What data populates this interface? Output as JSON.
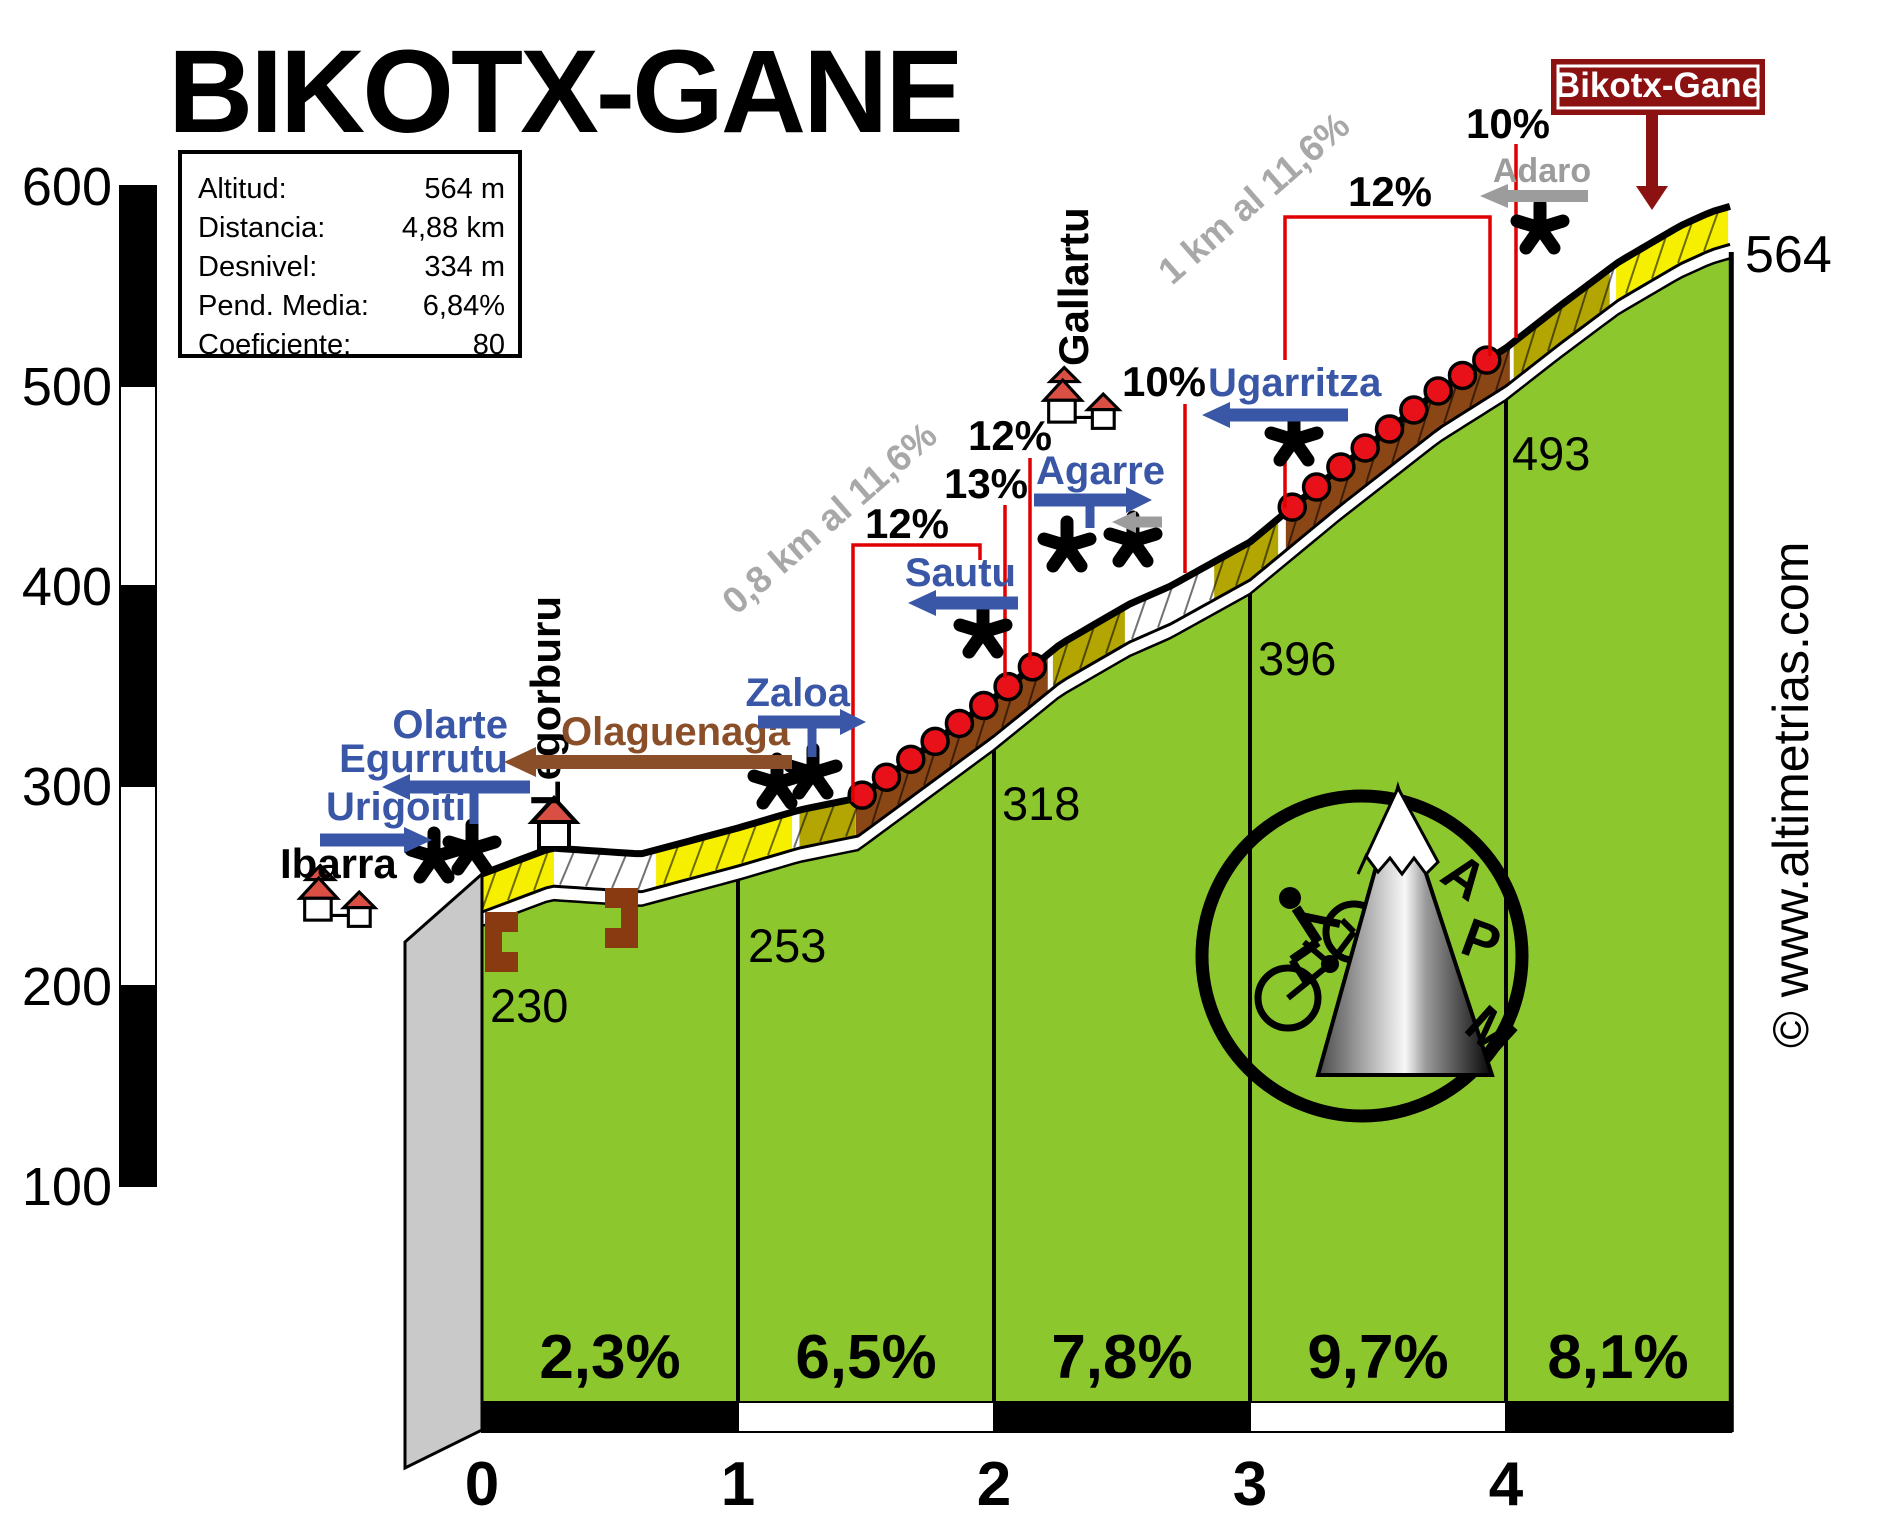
{
  "title": "BIKOTX-GANE",
  "watermark": "© www.altimetrias.com",
  "info_box": {
    "rows": [
      {
        "label": "Altitud:",
        "value": "564 m"
      },
      {
        "label": "Distancia:",
        "value": "4,88 km"
      },
      {
        "label": "Desnivel:",
        "value": "334 m"
      },
      {
        "label": "Pend. Media:",
        "value": "6,84%"
      },
      {
        "label": "Coeficiente:",
        "value": "80"
      }
    ]
  },
  "yaxis": {
    "ticks": [
      "600",
      "500",
      "400",
      "300",
      "200",
      "100"
    ]
  },
  "xaxis": {
    "ticks": [
      "0",
      "1",
      "2",
      "3",
      "4"
    ]
  },
  "km_gradient_labels": [
    "2,3%",
    "6,5%",
    "7,8%",
    "9,7%",
    "8,1%"
  ],
  "km_altitude_labels": [
    "230",
    "253",
    "318",
    "396",
    "493"
  ],
  "summit_altitude": "564",
  "summit_label": "Bikotx-Gane",
  "annotations": {
    "ibarra": "Ibarra",
    "urigoiti": "Urigoiti",
    "olarte": "Olarte",
    "egurrutu": "Egurrutu",
    "legorburu": "Legorburu",
    "olaguenaga": "Olaguenaga",
    "zaloa": "Zaloa",
    "sautu": "Sautu",
    "agarre": "Agarre",
    "gallartu": "Gallartu",
    "ugarritza": "Ugarritza",
    "adaro": "Adaro",
    "sector1": "0,8 km al 11,6%",
    "sector2": "1 km al 11,6%",
    "grad_12_sautu": "12%",
    "grad_13": "13%",
    "grad_12_agarre": "12%",
    "grad_10_ugarritza": "10%",
    "grad_12_top": "12%",
    "grad_10_adaro": "10%"
  },
  "logo": {
    "letters": [
      "A",
      "P",
      "M"
    ]
  },
  "colors": {
    "green": "#8dc72e",
    "yellow": "#f6ef00",
    "white": "#ffffff",
    "olive": "#b3a602",
    "brown": "#8a4715",
    "dot_red": "#e8111a",
    "line_red": "#e10000",
    "blue": "#3a57a7",
    "gray_arrow": "#9c9c9c",
    "brown_text": "#8a4f28",
    "maroon": "#8c1212",
    "side_gray": "#c9c9c9"
  },
  "chart_data": {
    "type": "area",
    "title": "BIKOTX-GANE",
    "xlabel": "km",
    "ylabel": "m",
    "xlim": [
      0,
      4.88
    ],
    "ylim": [
      100,
      600
    ],
    "x_ticks": [
      0,
      1,
      2,
      3,
      4
    ],
    "y_ticks": [
      600,
      500,
      400,
      300,
      200,
      100
    ],
    "summit": {
      "name": "Bikotx-Gane",
      "altitude_m": 564,
      "distance_km": 4.88,
      "total_climb_m": 334,
      "avg_gradient_pct": 6.84,
      "coefficient": 80
    },
    "km_altitudes": [
      {
        "km": 0,
        "alt": 230
      },
      {
        "km": 1,
        "alt": 253
      },
      {
        "km": 2,
        "alt": 318
      },
      {
        "km": 3,
        "alt": 396
      },
      {
        "km": 4,
        "alt": 493
      },
      {
        "km": 4.88,
        "alt": 564
      }
    ],
    "km_avg_gradients_pct": [
      2.3,
      6.5,
      7.8,
      9.7,
      8.1
    ],
    "profile_points": [
      [
        0,
        230
      ],
      [
        0.27,
        243
      ],
      [
        0.62,
        240
      ],
      [
        1,
        253
      ],
      [
        1.24,
        262
      ],
      [
        1.47,
        268
      ],
      [
        2,
        318
      ],
      [
        2.26,
        345
      ],
      [
        2.53,
        365
      ],
      [
        2.69,
        374
      ],
      [
        3,
        396
      ],
      [
        3.35,
        433
      ],
      [
        3.74,
        472
      ],
      [
        4,
        493
      ],
      [
        4.21,
        514
      ],
      [
        4.44,
        536
      ],
      [
        4.68,
        554
      ],
      [
        4.8,
        561
      ],
      [
        4.88,
        564
      ]
    ],
    "surface_segments": [
      {
        "from": 0,
        "to": 0.3,
        "surface": "yellow"
      },
      {
        "from": 0.3,
        "to": 0.68,
        "surface": "white"
      },
      {
        "from": 0.68,
        "to": 1.24,
        "surface": "yellow"
      },
      {
        "from": 1.24,
        "to": 1.46,
        "surface": "olive"
      },
      {
        "from": 1.46,
        "to": 2.23,
        "surface": "brown",
        "dots": true
      },
      {
        "from": 2.23,
        "to": 2.53,
        "surface": "olive"
      },
      {
        "from": 2.53,
        "to": 2.86,
        "surface": "white"
      },
      {
        "from": 2.86,
        "to": 3.14,
        "surface": "olive"
      },
      {
        "from": 3.14,
        "to": 4.03,
        "surface": "brown",
        "dots": true
      },
      {
        "from": 4.03,
        "to": 4.43,
        "surface": "olive"
      },
      {
        "from": 4.43,
        "to": 4.88,
        "surface": "yellow"
      }
    ],
    "gradient_annotations": [
      {
        "label": "12%",
        "near": "Sautu",
        "approx_km": 1.5
      },
      {
        "label": "13%",
        "near": "Sautu",
        "approx_km": 2.0
      },
      {
        "label": "12%",
        "near": "Agarre",
        "approx_km": 2.1
      },
      {
        "label": "10%",
        "near": "Ugarritza",
        "approx_km": 2.75
      },
      {
        "label": "12%",
        "near": "Ugarritza-Adaro",
        "approx_km_range": [
          3.14,
          3.94
        ]
      },
      {
        "label": "10%",
        "near": "Adaro",
        "approx_km": 4.05
      }
    ],
    "sector_notes": [
      "0,8 km al 11,6%",
      "1 km al 11,6%"
    ],
    "landmarks": [
      "Ibarra",
      "Urigoiti",
      "Olarte",
      "Egurrutu",
      "Legorburu",
      "Olaguenaga",
      "Zaloa",
      "Sautu",
      "Agarre",
      "Gallartu",
      "Ugarritza",
      "Adaro",
      "Bikotx-Gane"
    ],
    "legend_position": "none",
    "grid": false
  }
}
